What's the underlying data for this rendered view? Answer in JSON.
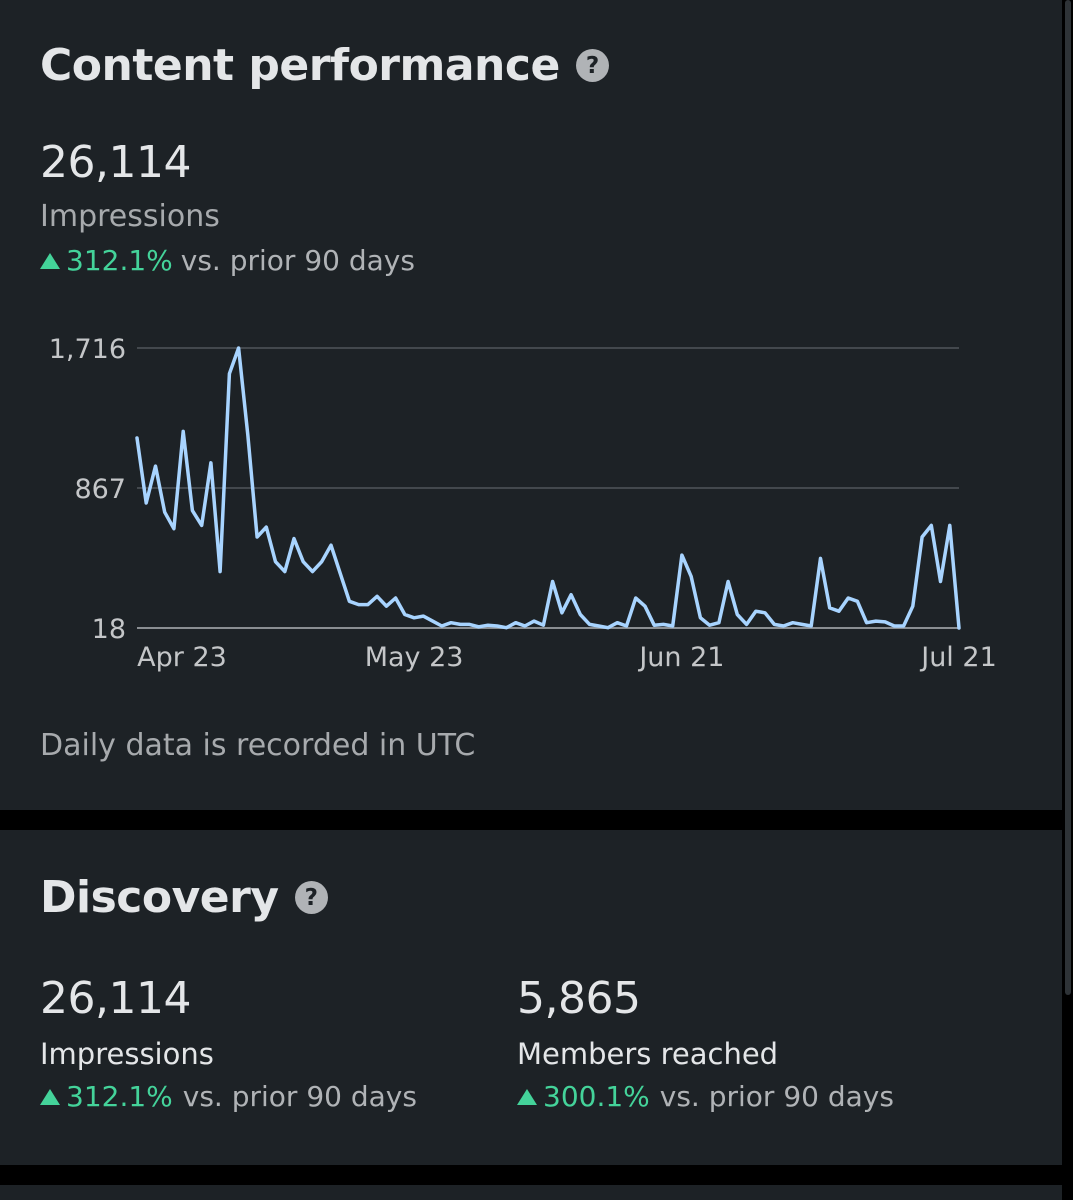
{
  "content_performance": {
    "title": "Content performance",
    "help_icon": "question-circle-icon",
    "impressions_value": "26,114",
    "impressions_label": "Impressions",
    "change_pct": "312.1%",
    "change_text": "vs. prior 90 days",
    "footnote": "Daily data is recorded in UTC"
  },
  "discovery": {
    "title": "Discovery",
    "help_icon": "question-circle-icon",
    "impressions": {
      "value": "26,114",
      "label": "Impressions",
      "change_pct": "312.1%",
      "change_text": "vs. prior 90 days"
    },
    "members": {
      "value": "5,865",
      "label": "Members reached",
      "change_pct": "300.1%",
      "change_text": "vs. prior 90 days"
    }
  },
  "colors": {
    "background": "#1d2226",
    "line": "#a8d4ff",
    "positive": "#44d39a",
    "gridline": "#50555a"
  },
  "chart_data": {
    "type": "line",
    "title": "",
    "xlabel": "",
    "ylabel": "",
    "ylim": [
      18,
      1716
    ],
    "y_ticks": [
      1716,
      867,
      18
    ],
    "y_tick_labels": [
      "1,716",
      "867",
      "18"
    ],
    "x_tick_labels": [
      "Apr 23",
      "May 23",
      "Jun 21",
      "Jul 21"
    ],
    "x_tick_dates": [
      "2023-04-23",
      "2023-05-23",
      "2023-06-21",
      "2023-07-21"
    ],
    "x_range": [
      "2023-04-23",
      "2023-07-21"
    ],
    "grid": true,
    "series": [
      {
        "x": [
          "2023-04-23",
          "2023-04-24",
          "2023-04-25",
          "2023-04-26",
          "2023-04-27",
          "2023-04-28",
          "2023-04-29",
          "2023-04-30",
          "2023-05-01",
          "2023-05-02",
          "2023-05-03",
          "2023-05-04",
          "2023-05-05",
          "2023-05-06",
          "2023-05-07",
          "2023-05-08",
          "2023-05-09",
          "2023-05-10",
          "2023-05-11",
          "2023-05-12",
          "2023-05-13",
          "2023-05-14",
          "2023-05-15",
          "2023-05-16",
          "2023-05-17",
          "2023-05-18",
          "2023-05-19",
          "2023-05-20",
          "2023-05-21",
          "2023-05-22",
          "2023-05-23",
          "2023-05-24",
          "2023-05-25",
          "2023-05-26",
          "2023-05-27",
          "2023-05-28",
          "2023-05-29",
          "2023-05-30",
          "2023-05-31",
          "2023-06-01",
          "2023-06-02",
          "2023-06-03",
          "2023-06-04",
          "2023-06-05",
          "2023-06-06",
          "2023-06-07",
          "2023-06-08",
          "2023-06-09",
          "2023-06-10",
          "2023-06-11",
          "2023-06-12",
          "2023-06-13",
          "2023-06-14",
          "2023-06-15",
          "2023-06-16",
          "2023-06-17",
          "2023-06-18",
          "2023-06-19",
          "2023-06-20",
          "2023-06-21",
          "2023-06-22",
          "2023-06-23",
          "2023-06-24",
          "2023-06-25",
          "2023-06-26",
          "2023-06-27",
          "2023-06-28",
          "2023-06-29",
          "2023-06-30",
          "2023-07-01",
          "2023-07-02",
          "2023-07-03",
          "2023-07-04",
          "2023-07-05",
          "2023-07-06",
          "2023-07-07",
          "2023-07-08",
          "2023-07-09",
          "2023-07-10",
          "2023-07-11",
          "2023-07-12",
          "2023-07-13",
          "2023-07-14",
          "2023-07-15",
          "2023-07-16",
          "2023-07-17",
          "2023-07-18",
          "2023-07-19",
          "2023-07-20",
          "2023-07-21"
        ],
        "values": [
          1170,
          776,
          1000,
          720,
          620,
          1210,
          730,
          640,
          1020,
          360,
          1560,
          1716,
          1190,
          570,
          630,
          420,
          360,
          560,
          420,
          360,
          420,
          520,
          350,
          180,
          160,
          160,
          210,
          150,
          200,
          100,
          80,
          90,
          60,
          30,
          50,
          40,
          40,
          25,
          35,
          30,
          20,
          50,
          30,
          60,
          35,
          300,
          110,
          220,
          100,
          40,
          30,
          20,
          50,
          30,
          200,
          150,
          35,
          40,
          30,
          460,
          330,
          80,
          35,
          50,
          300,
          100,
          40,
          120,
          110,
          40,
          30,
          50,
          40,
          30,
          440,
          140,
          120,
          200,
          180,
          50,
          60,
          55,
          30,
          30,
          150,
          570,
          640,
          300,
          640,
          18
        ]
      }
    ]
  }
}
